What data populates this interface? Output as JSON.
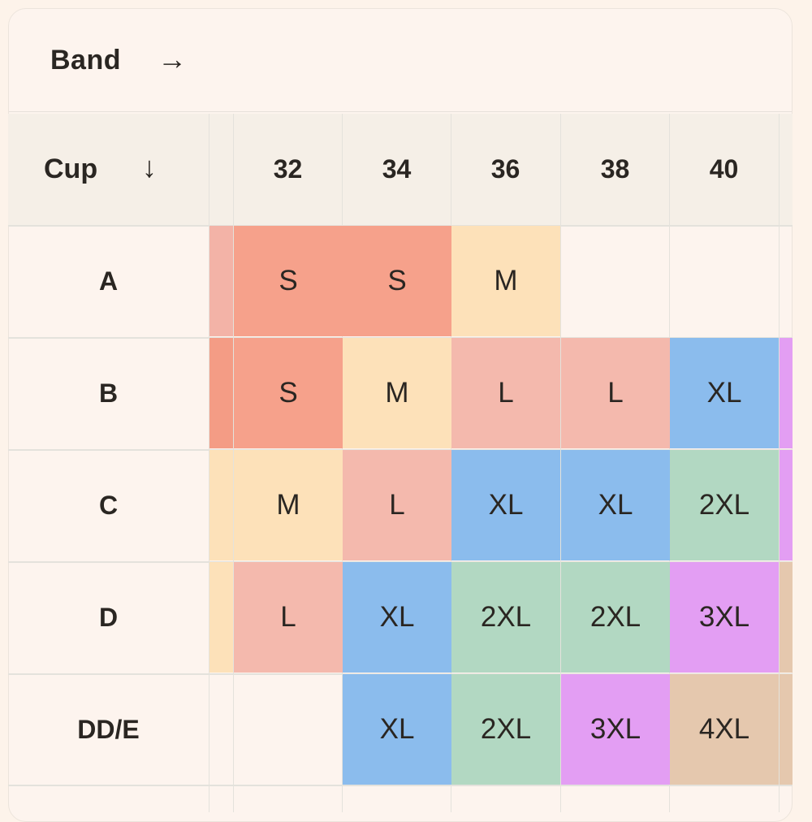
{
  "band": {
    "label": "Band",
    "arrow": "→"
  },
  "cup": {
    "label": "Cup",
    "arrow": "↓"
  },
  "bands": [
    "32",
    "34",
    "36",
    "38",
    "40"
  ],
  "rows": [
    {
      "cup": "A",
      "sizes": [
        "S",
        "S",
        "M",
        "",
        ""
      ]
    },
    {
      "cup": "B",
      "sizes": [
        "S",
        "M",
        "L",
        "L",
        "XL"
      ]
    },
    {
      "cup": "C",
      "sizes": [
        "M",
        "L",
        "XL",
        "XL",
        "2XL"
      ]
    },
    {
      "cup": "D",
      "sizes": [
        "L",
        "XL",
        "2XL",
        "2XL",
        "3XL"
      ]
    },
    {
      "cup": "DD/E",
      "sizes": [
        "",
        "XL",
        "2XL",
        "3XL",
        "4XL"
      ]
    }
  ],
  "size_colors": {
    "S": "#f6a18b",
    "M": "#fde1b9",
    "L": "#f4b9ad",
    "XL": "#8bbced",
    "2XL": "#b2d8c2",
    "3XL": "#e39ef3",
    "4XL": "#e5c8ae"
  },
  "left_edge_colors": [
    "#f3b3a7",
    "#f49c85",
    "#fde1b9",
    "#fde1b9",
    ""
  ],
  "right_edge_colors": [
    "",
    "#e39ef3",
    "#e39ef3",
    "#e5c8ae",
    "#e5c8ae"
  ]
}
